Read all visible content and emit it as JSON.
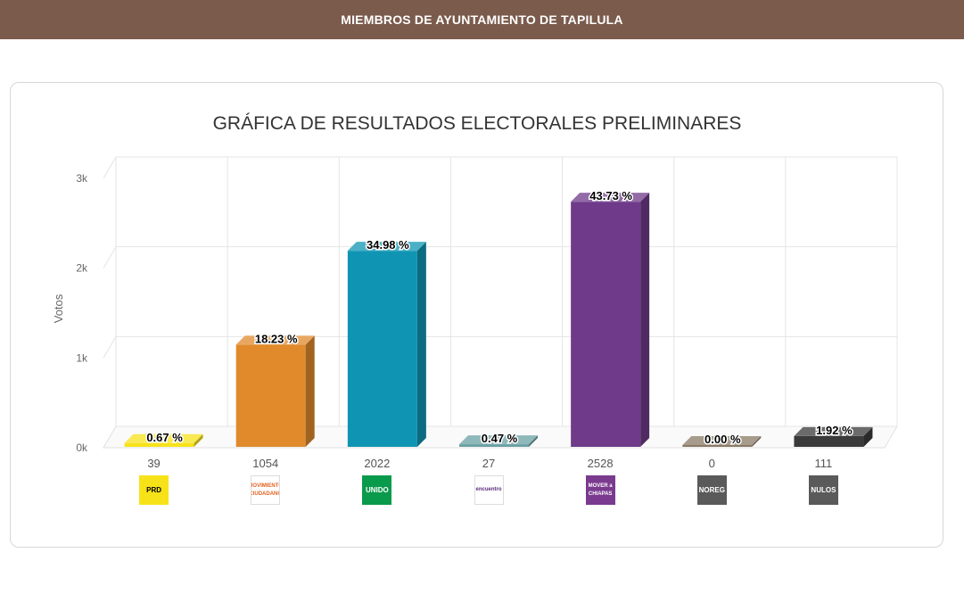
{
  "header": {
    "title": "MIEMBROS DE AYUNTAMIENTO DE TAPILULA"
  },
  "chart_data": {
    "type": "bar",
    "title": "GRÁFICA DE RESULTADOS ELECTORALES PRELIMINARES",
    "xlabel": "",
    "ylabel": "Votos",
    "ylim": [
      0,
      3000
    ],
    "yticks": [
      {
        "value": 0,
        "label": "0k"
      },
      {
        "value": 1000,
        "label": "1k"
      },
      {
        "value": 2000,
        "label": "2k"
      },
      {
        "value": 3000,
        "label": "3k"
      }
    ],
    "grid": true,
    "categories": [
      "PRD",
      "MC",
      "CHIAPAS UNIDO",
      "ENCUENTRO SOCIAL",
      "MOVER A CHIAPAS",
      "NOREG",
      "NULOS"
    ],
    "values": [
      39,
      1054,
      2022,
      27,
      2528,
      0,
      111
    ],
    "value_labels": [
      "39",
      "1054",
      "2022",
      "27",
      "2528",
      "0",
      "111"
    ],
    "percent_labels": [
      "0.67 %",
      "18.23 %",
      "34.98 %",
      "0.47 %",
      "43.73 %",
      "0.00 %",
      "1.92 %"
    ],
    "colors": [
      "#f7e21a",
      "#e08a2c",
      "#0f95b3",
      "#6aa0a3",
      "#6f3a8a",
      "#8a7a66",
      "#3a3a3a"
    ],
    "logos": [
      {
        "name": "prd-logo-icon",
        "text": "PRD",
        "bg": "#f7e21a",
        "fg": "#000000"
      },
      {
        "name": "movimiento-ciudadano-logo-icon",
        "text": "MOVIMIENTO CIUDADANO",
        "bg": "#ffffff",
        "fg": "#e3621f"
      },
      {
        "name": "chiapas-unido-logo-icon",
        "text": "UNIDO",
        "bg": "#0a9a4c",
        "fg": "#ffffff"
      },
      {
        "name": "encuentro-social-logo-icon",
        "text": "encuentro",
        "bg": "#ffffff",
        "fg": "#5b2b7a"
      },
      {
        "name": "mover-a-chiapas-logo-icon",
        "text": "MOVER a CHIAPAS",
        "bg": "#7a3a8e",
        "fg": "#ffffff"
      },
      {
        "name": "noreg-logo-icon",
        "text": "NOREG",
        "bg": "#5a5a5a",
        "fg": "#ffffff"
      },
      {
        "name": "nulos-logo-icon",
        "text": "NULOS",
        "bg": "#5a5a5a",
        "fg": "#ffffff"
      }
    ]
  }
}
